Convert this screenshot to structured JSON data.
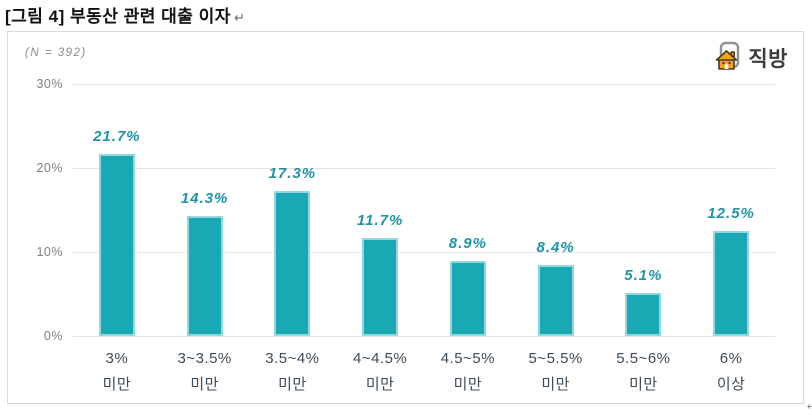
{
  "header": {
    "title": "[그림 4] 부동산 관련 대출 이자",
    "paragraph_mark": "↵"
  },
  "footer": {
    "paragraph_mark": "↵"
  },
  "logo": {
    "text": "직방"
  },
  "chart_data": {
    "type": "bar",
    "title": "부동산 관련 대출 이자",
    "annotation": "(N = 392)",
    "categories": [
      {
        "line1": "3%",
        "line2": "미만"
      },
      {
        "line1": "3~3.5%",
        "line2": "미만"
      },
      {
        "line1": "3.5~4%",
        "line2": "미만"
      },
      {
        "line1": "4~4.5%",
        "line2": "미만"
      },
      {
        "line1": "4.5~5%",
        "line2": "미만"
      },
      {
        "line1": "5~5.5%",
        "line2": "미만"
      },
      {
        "line1": "5.5~6%",
        "line2": "미만"
      },
      {
        "line1": "6%",
        "line2": "이상"
      }
    ],
    "values": [
      21.7,
      14.3,
      17.3,
      11.7,
      8.9,
      8.4,
      5.1,
      12.5
    ],
    "value_labels": [
      "21.7%",
      "14.3%",
      "17.3%",
      "11.7%",
      "8.9%",
      "8.4%",
      "5.1%",
      "12.5%"
    ],
    "xlabel": "",
    "ylabel": "",
    "ylim": [
      0,
      30
    ],
    "y_ticks": [
      {
        "label": "0%",
        "value": 0
      },
      {
        "label": "10%",
        "value": 10
      },
      {
        "label": "20%",
        "value": 20
      },
      {
        "label": "30%",
        "value": 30
      }
    ],
    "grid": true,
    "legend": "none",
    "colors": {
      "bar": "#18A9B5",
      "value_label": "#1F93A6",
      "grid_line": "#E4E4E4",
      "axis_text": "#7F7F7F",
      "category_text": "#3C4B59",
      "panel_border": "#D9D9D9",
      "logo_orange": "#F5A31B",
      "logo_outline": "#919191",
      "logo_text": "#3C3C3C",
      "title_text": "#111111"
    }
  }
}
